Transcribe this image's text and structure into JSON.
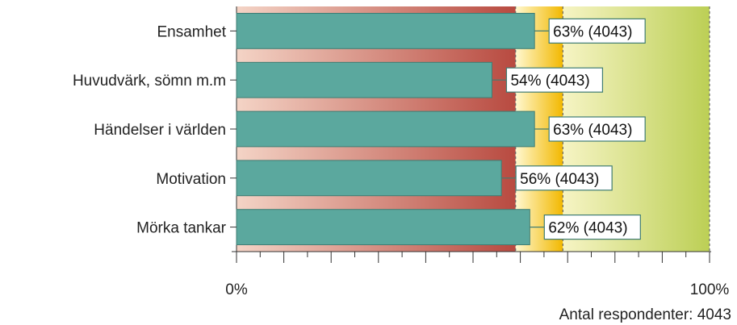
{
  "chart_data": {
    "type": "bar",
    "orientation": "horizontal",
    "categories": [
      "Ensamhet",
      "Huvudvärk, sömn m.m",
      "Händelser i världen",
      "Motivation",
      "Mörka tankar"
    ],
    "values": [
      63,
      54,
      63,
      56,
      62
    ],
    "data_labels": [
      "63% (4043)",
      "54% (4043)",
      "63% (4043)",
      "56% (4043)",
      "62% (4043)"
    ],
    "xlim": [
      0,
      100
    ],
    "x_tick_labels": [
      "0%",
      "100%"
    ],
    "background_bands": [
      {
        "from": 0,
        "to": 59,
        "color": "#c0504d"
      },
      {
        "from": 59,
        "to": 69,
        "color": "#ffc000"
      },
      {
        "from": 69,
        "to": 100,
        "color": "#c4d56a"
      }
    ],
    "reference_lines": [
      59,
      69,
      100
    ],
    "bar_color": "#5ba89e",
    "footer": "Antal respondenter: 4043"
  }
}
